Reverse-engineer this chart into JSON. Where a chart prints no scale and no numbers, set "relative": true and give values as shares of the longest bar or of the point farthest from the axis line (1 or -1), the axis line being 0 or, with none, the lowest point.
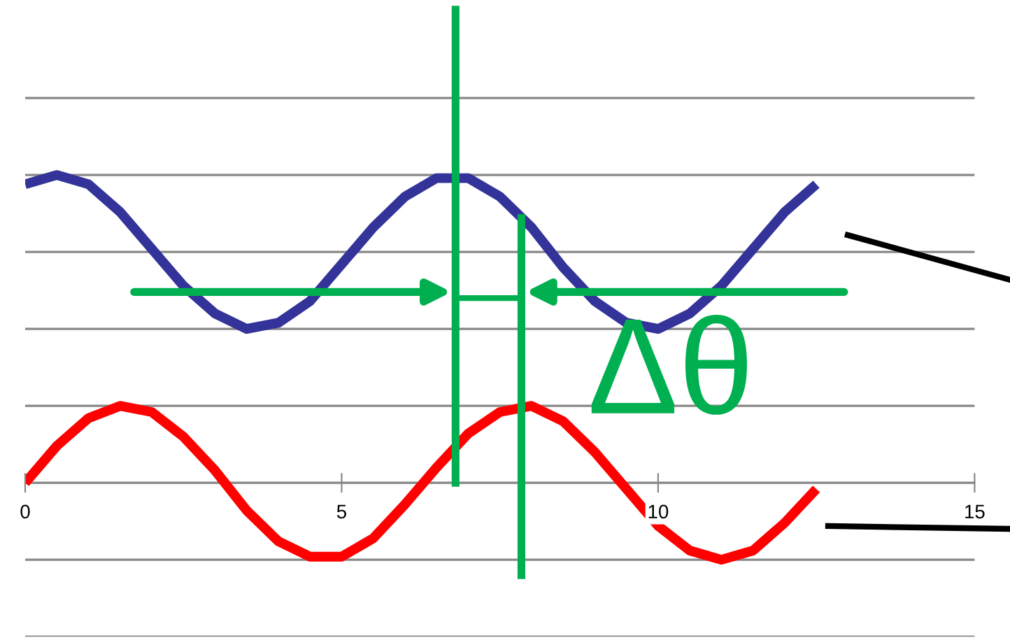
{
  "chart_data": {
    "type": "line",
    "relative": true,
    "x": [
      0,
      0.5,
      1,
      1.5,
      2,
      2.5,
      3,
      3.5,
      4,
      4.5,
      5,
      5.5,
      6,
      6.5,
      7,
      7.5,
      8,
      8.5,
      9,
      9.5,
      10,
      10.5,
      11,
      11.5,
      12,
      12.5
    ],
    "xlim": [
      0,
      15
    ],
    "xticks": [
      0,
      5,
      10,
      15
    ],
    "series": [
      {
        "color": "#333399",
        "values": [
          0.97,
          1.0,
          0.97,
          0.88,
          0.76,
          0.64,
          0.55,
          0.5,
          0.52,
          0.59,
          0.71,
          0.83,
          0.93,
          0.99,
          0.99,
          0.93,
          0.83,
          0.7,
          0.59,
          0.52,
          0.5,
          0.55,
          0.64,
          0.76,
          0.88,
          0.97
        ]
      },
      {
        "color": "#ff0000",
        "values": [
          0,
          0.12,
          0.21,
          0.25,
          0.23,
          0.15,
          0.04,
          -0.09,
          -0.19,
          -0.24,
          -0.24,
          -0.18,
          -0.07,
          0.05,
          0.16,
          0.23,
          0.25,
          0.2,
          0.1,
          -0.02,
          -0.14,
          -0.22,
          -0.25,
          -0.22,
          -0.13,
          -0.02
        ]
      }
    ],
    "ref_lines": [
      {
        "axis": "x",
        "value": 6.8,
        "color": "#00b050"
      },
      {
        "axis": "x",
        "value": 7.84,
        "color": "#00b050"
      }
    ],
    "grid": "y",
    "marker": "none",
    "line_style": "solid",
    "annotations": [
      "Δθ"
    ]
  }
}
